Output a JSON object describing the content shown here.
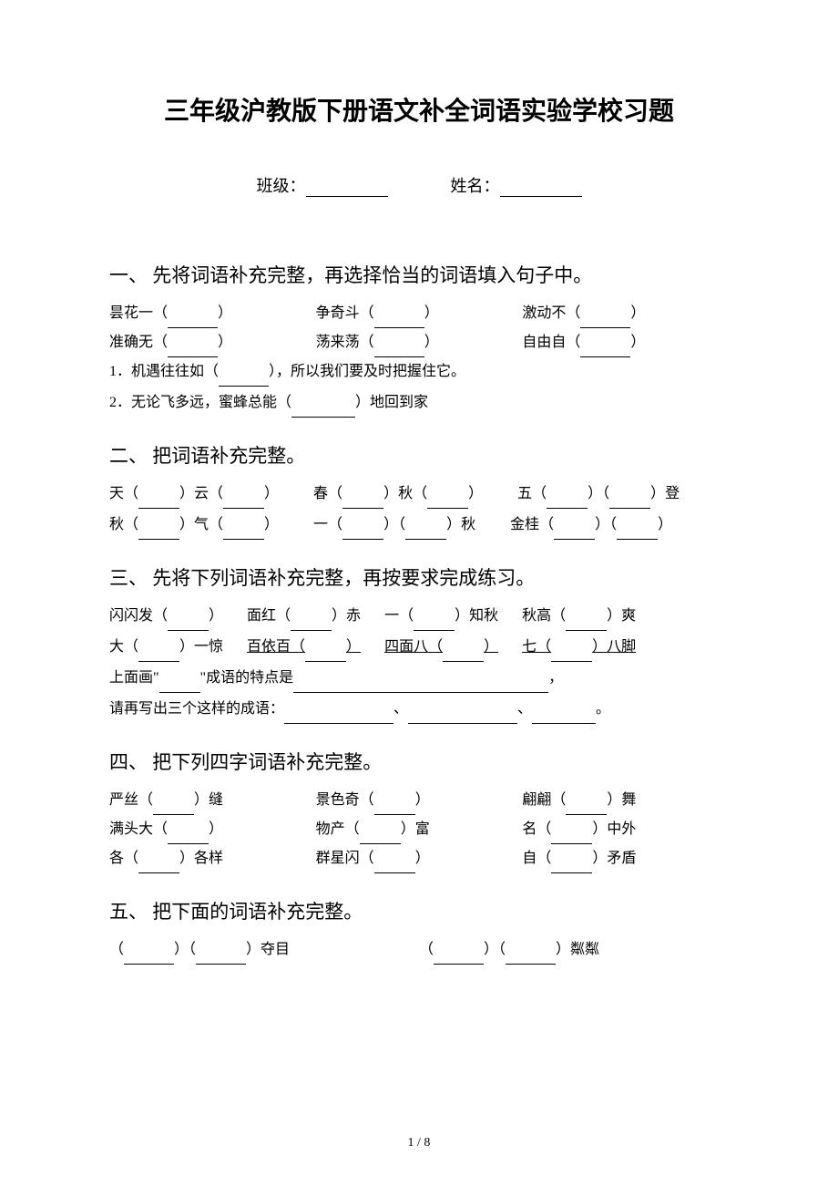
{
  "title": "三年级沪教版下册语文补全词语实验学校习题",
  "info": {
    "class_label": "班级：",
    "name_label": "姓名："
  },
  "sections": {
    "s1": {
      "heading": "一、 先将词语补充完整，再选择恰当的词语填入句子中。",
      "row1": {
        "item1": "昙花一（",
        "item1_close": "）",
        "item2": "争奇斗（",
        "item2_close": "）",
        "item3": "激动不（",
        "item3_close": "）"
      },
      "row2": {
        "item1": "准确无（",
        "item1_close": "）",
        "item2": "荡来荡（",
        "item2_close": "）",
        "item3": "自由自（",
        "item3_close": "）"
      },
      "line1a": "1．机遇往往如（",
      "line1b": "），所以我们要及时把握住它。",
      "line2a": "2．无论飞多远，蜜蜂总能（",
      "line2b": "）地回到家"
    },
    "s2": {
      "heading": "二、 把词语补充完整。",
      "t1a": "天（",
      "t1b": "）云（",
      "t1c": "）",
      "t2a": "春（",
      "t2b": "）秋（",
      "t2c": "）",
      "t3a": "五（",
      "t3b": "）（",
      "t3c": "）登",
      "t4a": "秋（",
      "t4b": "）气（",
      "t4c": "）",
      "t5a": "一（",
      "t5b": "）（",
      "t5c": "）秋",
      "t6a": "金桂（",
      "t6b": "）（",
      "t6c": "）"
    },
    "s3": {
      "heading": "三、 先将下列词语补充完整，再按要求完成练习。",
      "u1a": "闪闪发（",
      "u1b": "）",
      "u2a": "面红（",
      "u2b": "）赤",
      "u3a": "一（",
      "u3b": "）知秋",
      "u4a": "秋高（",
      "u4b": "）爽",
      "u5a": "大（",
      "u5b": "）一惊",
      "u6a": "百依百（",
      "u6b": "）",
      "u7a": "四面八（",
      "u7b": "）",
      "u8a": "七（",
      "u8b": "）八脚",
      "q1a": "上面画\"",
      "q1b": "\"成语的特点是",
      "q1c": "，",
      "q2a": "请再写出三个这样的成语：",
      "q2b": "、",
      "q2c": "、",
      "q2d": "。"
    },
    "s4": {
      "heading": "四、 把下列四字词语补充完整。",
      "v1a": "严丝（",
      "v1b": "）缝",
      "v2a": "景色奇（",
      "v2b": "）",
      "v3a": "翩翩（",
      "v3b": "）舞",
      "v4a": "满头大（",
      "v4b": "）",
      "v5a": "物产（",
      "v5b": "）富",
      "v6a": "名（",
      "v6b": "）中外",
      "v7a": "各（",
      "v7b": "）各样",
      "v8a": "群星闪（",
      "v8b": "）",
      "v9a": "自（",
      "v9b": "）矛盾"
    },
    "s5": {
      "heading": "五、 把下面的词语补充完整。",
      "w1a": "（",
      "w1b": "）（",
      "w1c": "）夺目",
      "w2a": "（",
      "w2b": "）（",
      "w2c": "）粼粼"
    }
  },
  "page": "1 / 8",
  "style": {
    "background_color": "#ffffff",
    "text_color": "#000000",
    "title_fontsize": 28,
    "heading_fontsize": 21,
    "body_fontsize": 16,
    "font_family": "SimSun"
  }
}
